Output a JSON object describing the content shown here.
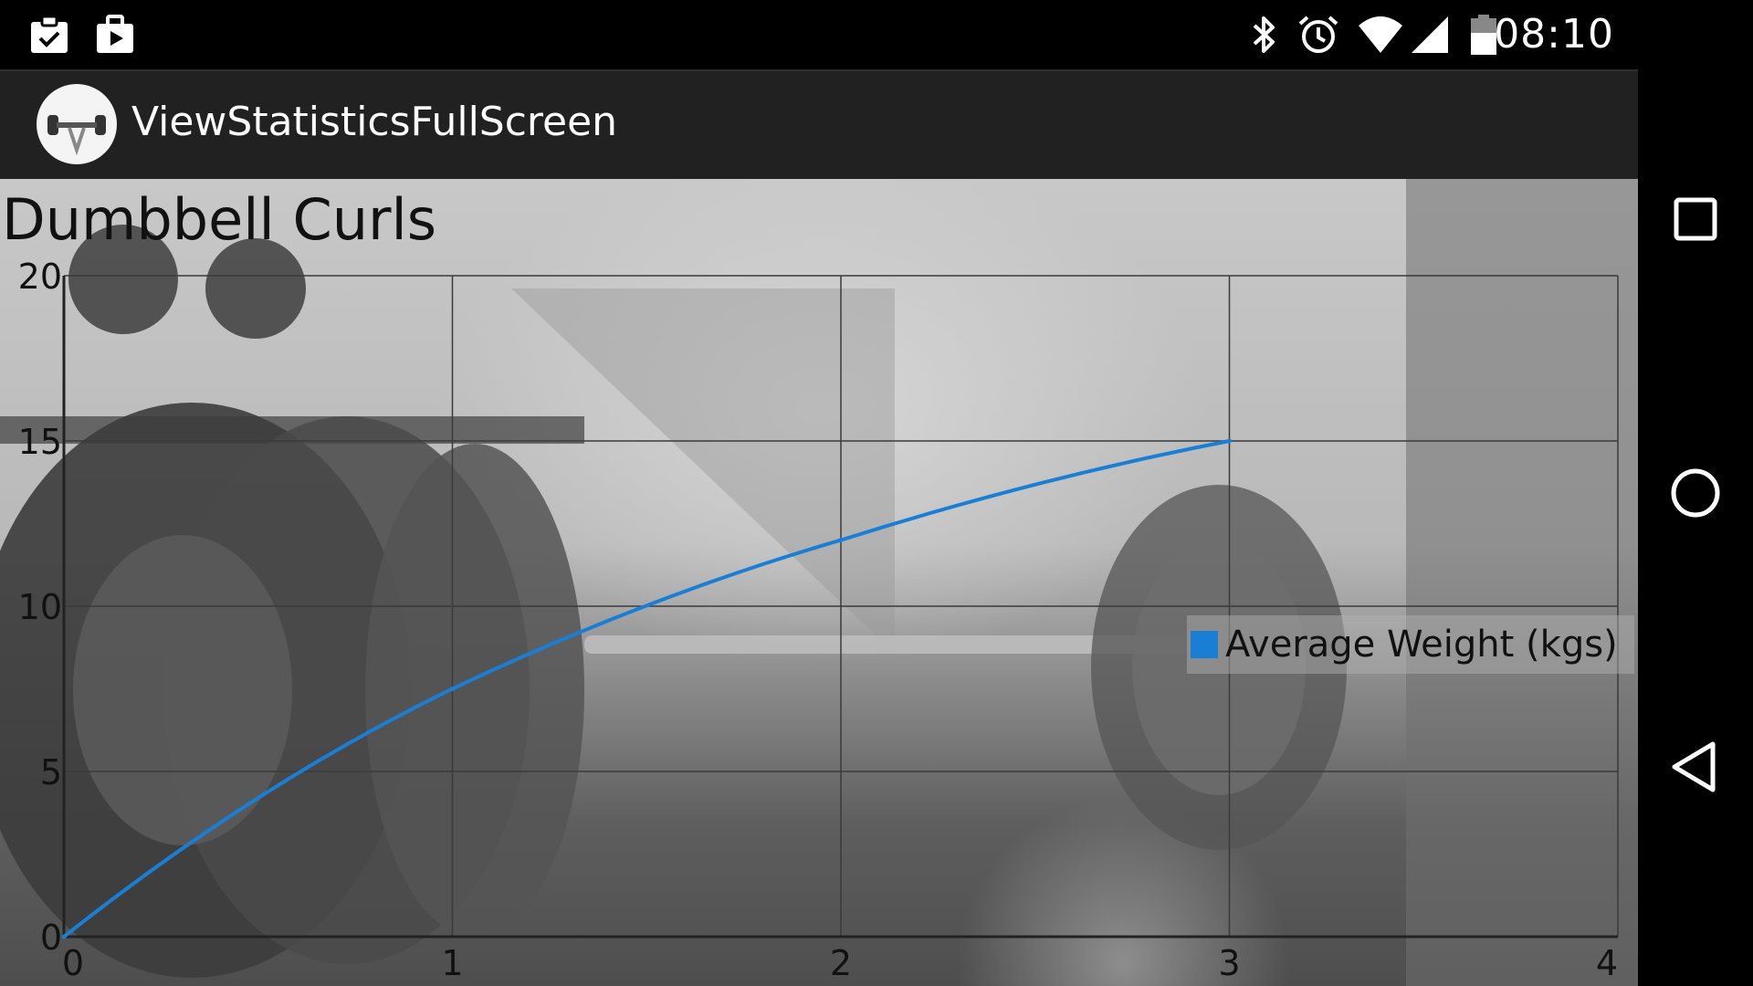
{
  "status_bar": {
    "time": "08:10",
    "left_icons": [
      "clipboard-check-icon",
      "briefcase-play-icon"
    ],
    "right_icons": [
      "bluetooth-icon",
      "alarm-icon",
      "wifi-icon",
      "signal-icon",
      "battery-icon"
    ]
  },
  "action_bar": {
    "title": "ViewStatisticsFullScreen",
    "logo_icon": "dumbbell-logo-icon"
  },
  "chart_data": {
    "type": "line",
    "title": "Dumbbell Curls",
    "xlabel": "",
    "ylabel": "",
    "xlim": [
      0,
      4
    ],
    "ylim": [
      0,
      20
    ],
    "x_ticks": [
      "0",
      "1",
      "2",
      "3",
      "4"
    ],
    "y_ticks": [
      "0",
      "5",
      "10",
      "15",
      "20"
    ],
    "grid": true,
    "legend_position": "middle-right",
    "series": [
      {
        "name": "Average Weight (kgs)",
        "color": "#1a7fd4",
        "x": [
          0,
          1,
          2,
          3
        ],
        "y": [
          0,
          7.5,
          12,
          15
        ]
      }
    ]
  },
  "nav_bar": {
    "buttons": [
      "recents-icon",
      "home-icon",
      "back-icon"
    ]
  }
}
